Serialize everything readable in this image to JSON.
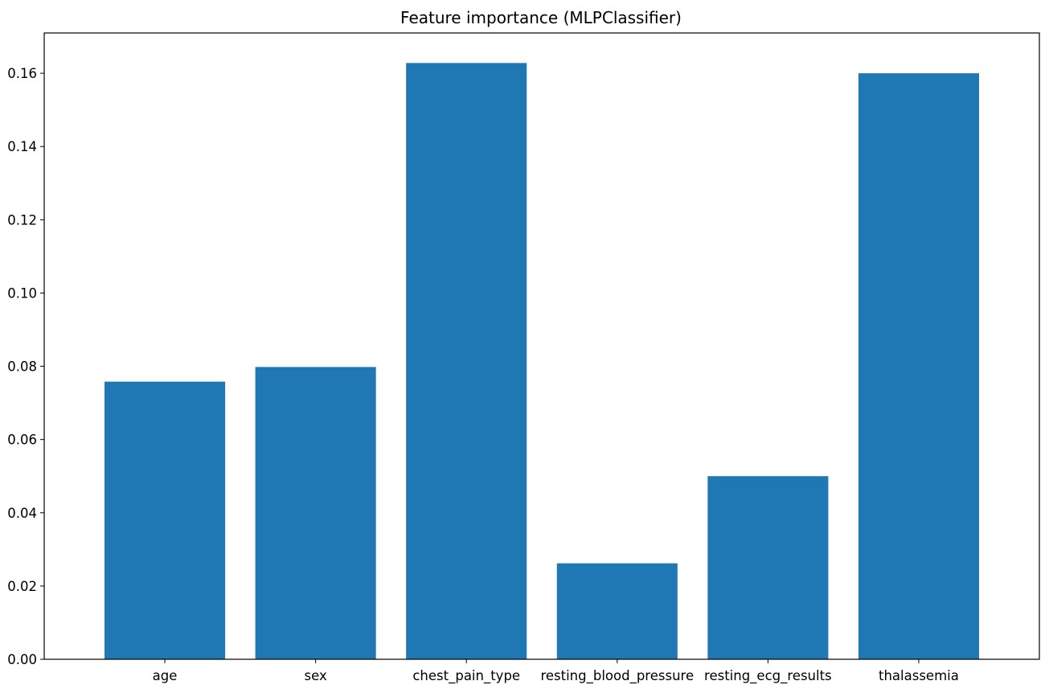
{
  "chart_data": {
    "type": "bar",
    "title": "Feature importance (MLPClassifier)",
    "xlabel": "",
    "ylabel": "",
    "categories": [
      "age",
      "sex",
      "chest_pain_type",
      "resting_blood_pressure",
      "resting_ecg_results",
      "thalassemia"
    ],
    "values": [
      0.0758,
      0.0798,
      0.1628,
      0.0262,
      0.05,
      0.16
    ],
    "ylim": [
      0,
      0.171
    ],
    "yticks": [
      0.0,
      0.02,
      0.04,
      0.06,
      0.08,
      0.1,
      0.12,
      0.14,
      0.16
    ],
    "ytick_labels": [
      "0.00",
      "0.02",
      "0.04",
      "0.06",
      "0.08",
      "0.10",
      "0.12",
      "0.14",
      "0.16"
    ],
    "bar_color": "#1f77b4",
    "grid": false,
    "legend": false
  }
}
